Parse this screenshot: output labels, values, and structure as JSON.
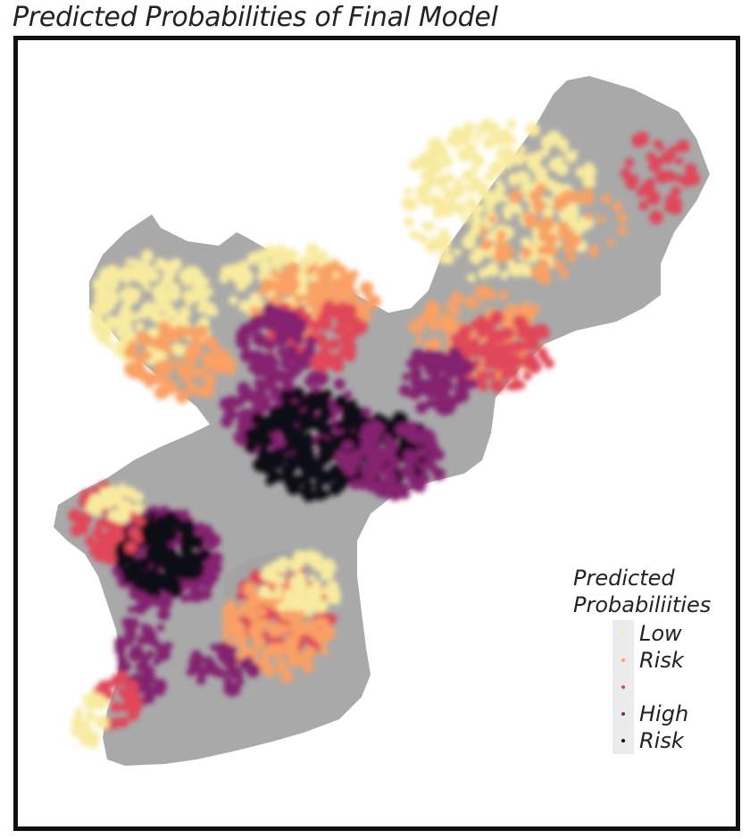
{
  "title": "Predicted Probabilities of Final Model",
  "legend": {
    "title_line1": "Predicted",
    "title_line2": "Probabiliities",
    "label_low_1": "Low",
    "label_low_2": "Risk",
    "label_high_1": "High",
    "label_high_2": "Risk",
    "classes": [
      {
        "name": "class-1",
        "color": "#f8eba0"
      },
      {
        "name": "class-2",
        "color": "#f9a065"
      },
      {
        "name": "class-3",
        "color": "#e0465a"
      },
      {
        "name": "class-4",
        "color": "#84206f"
      },
      {
        "name": "class-5",
        "color": "#0d0b12"
      }
    ]
  },
  "colors": {
    "land": "#a9a9a9",
    "frame": "#111111"
  }
}
